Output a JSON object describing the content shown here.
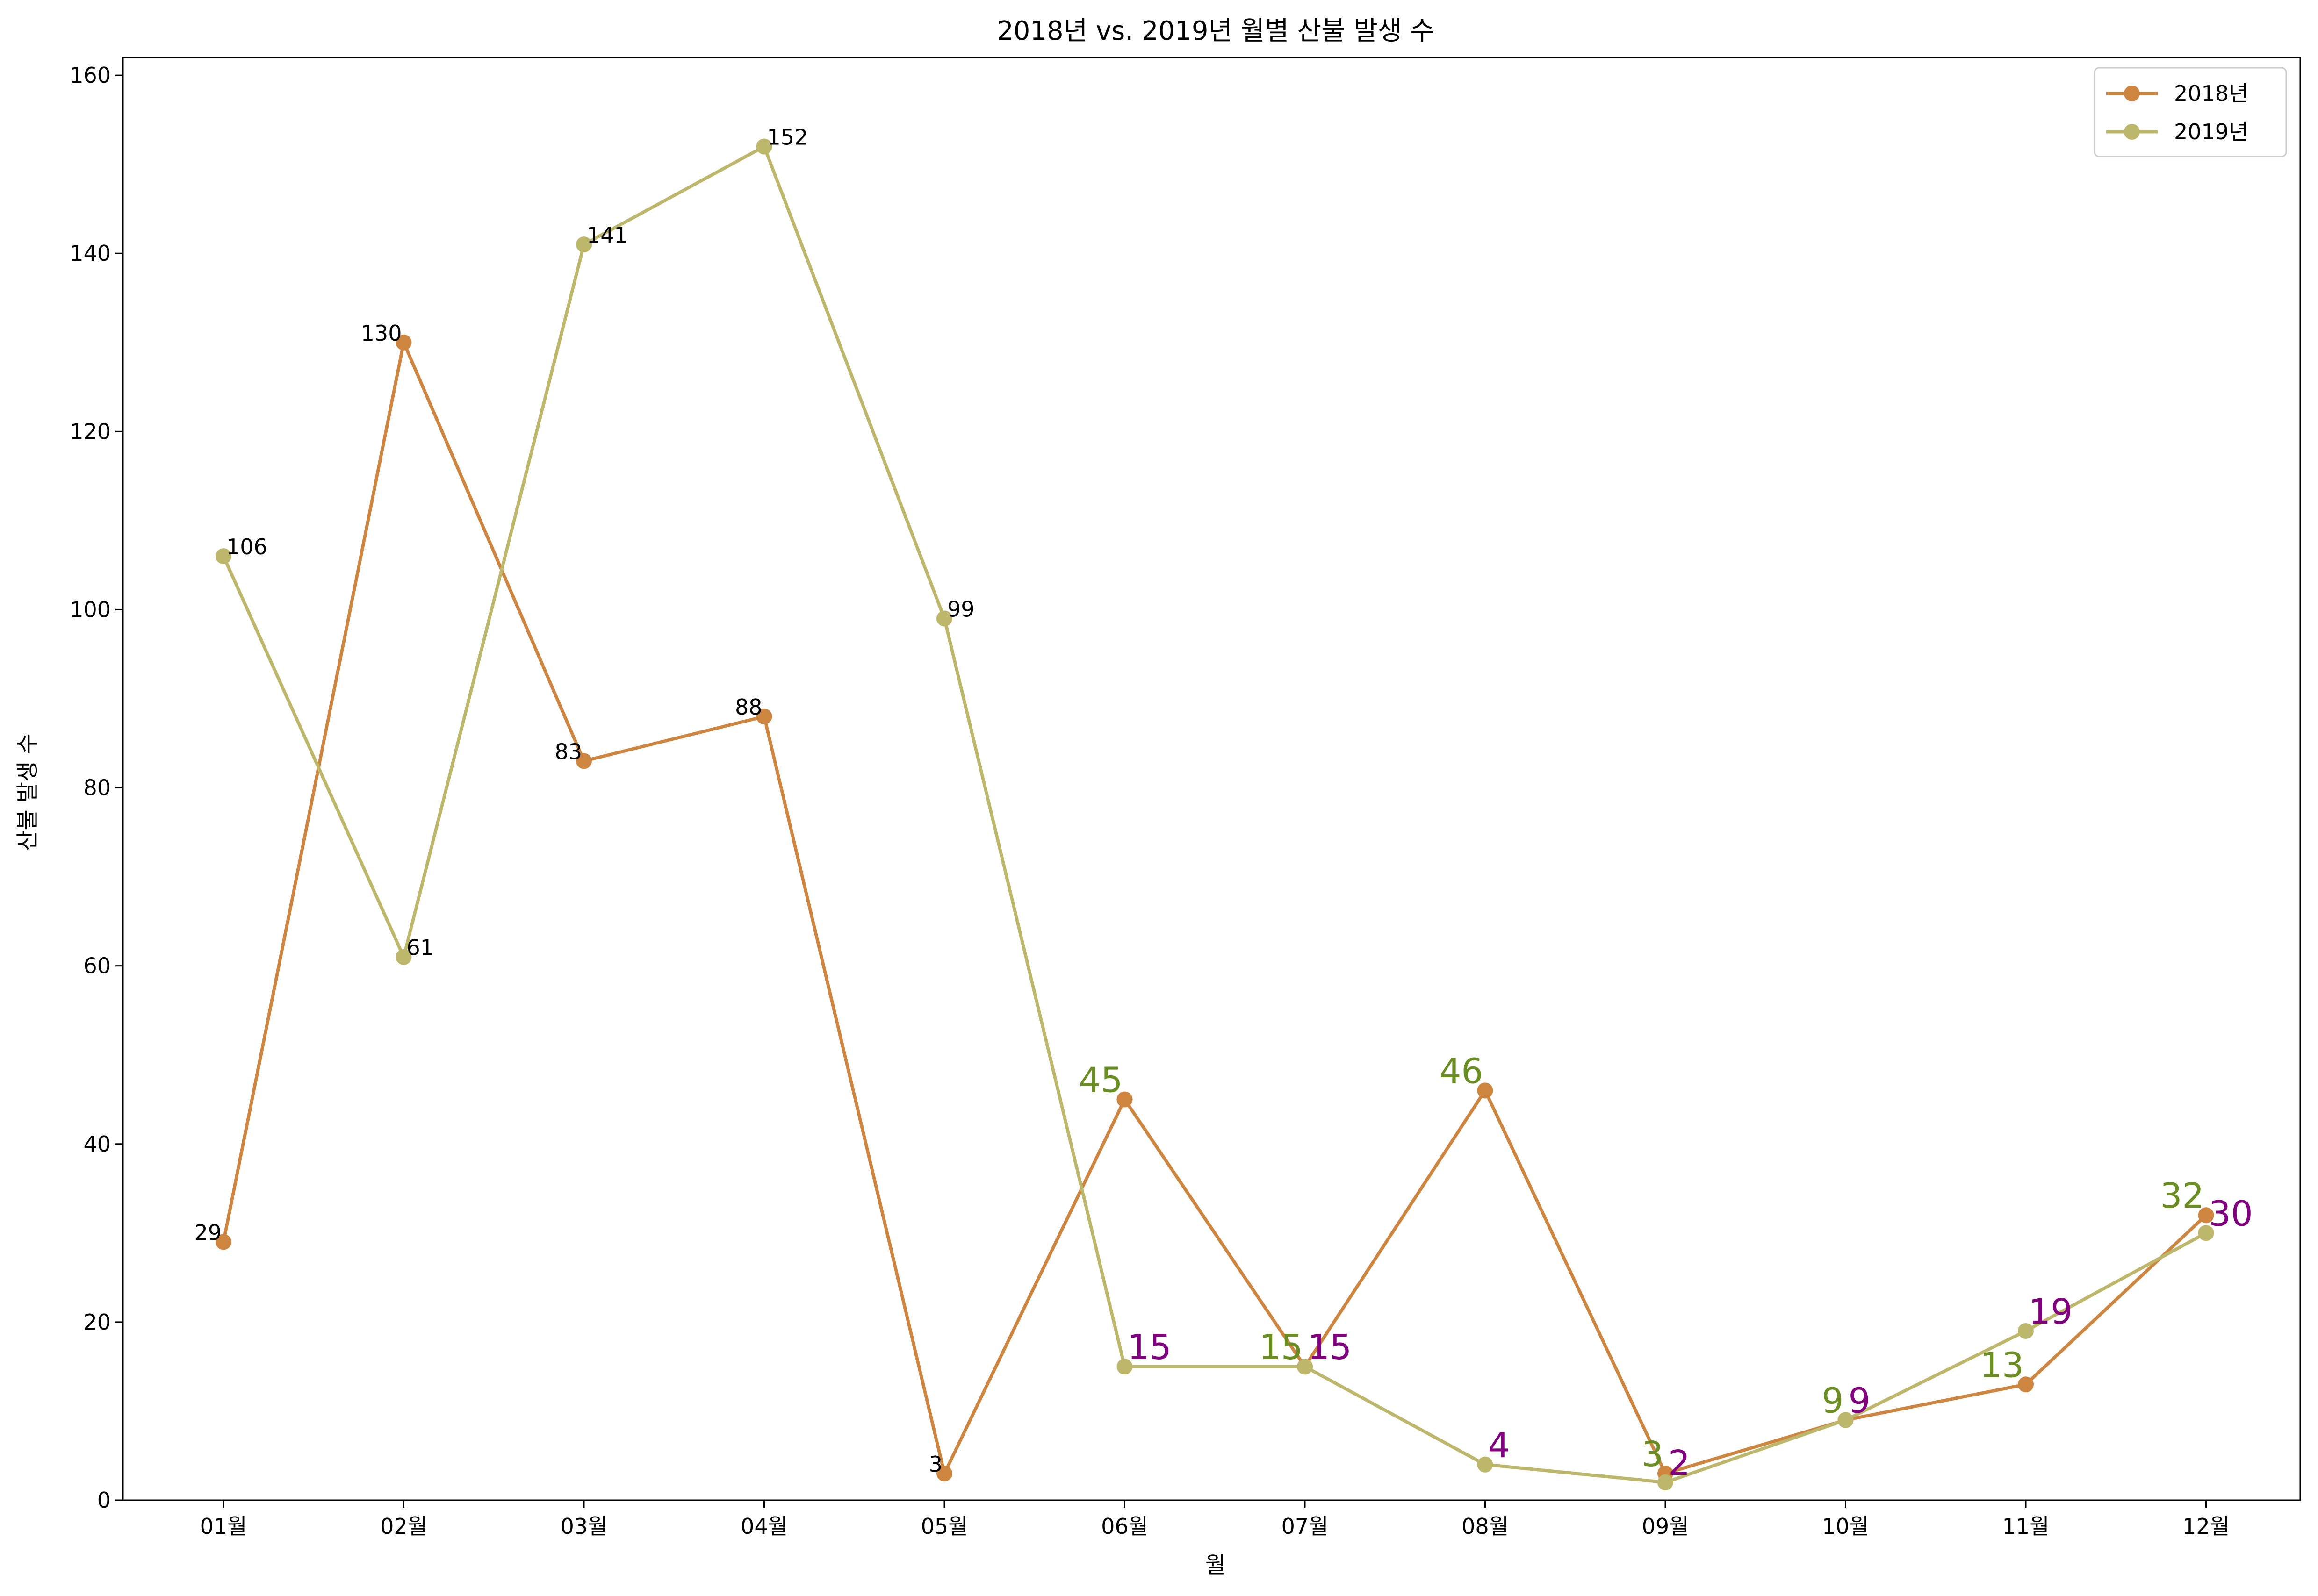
{
  "chart_data": {
    "type": "line",
    "title": "2018년 vs. 2019년 월별 산불 발생 수",
    "xlabel": "월",
    "ylabel": "산불 발생 수",
    "categories": [
      "01월",
      "02월",
      "03월",
      "04월",
      "05월",
      "06월",
      "07월",
      "08월",
      "09월",
      "10월",
      "11월",
      "12월"
    ],
    "yticks": [
      "0",
      "20",
      "40",
      "60",
      "80",
      "100",
      "120",
      "140",
      "160"
    ],
    "ylim": [
      0,
      162
    ],
    "grid": false,
    "legend_position": "top-right",
    "series": [
      {
        "name": "2018년",
        "color": "#cd853f",
        "values": [
          29,
          130,
          83,
          88,
          3,
          45,
          15,
          46,
          3,
          9,
          13,
          32
        ],
        "labels": [
          "29",
          "130",
          "83",
          "88",
          "3",
          "45",
          "15",
          "46",
          "3",
          "9",
          "13",
          "32"
        ]
      },
      {
        "name": "2019년",
        "color": "#bdb76b",
        "values": [
          106,
          61,
          141,
          152,
          99,
          15,
          15,
          4,
          2,
          9,
          19,
          30
        ],
        "labels": [
          "106",
          "61",
          "141",
          "152",
          "99",
          "15",
          "15",
          "4",
          "2",
          "9",
          "19",
          "30"
        ]
      }
    ],
    "annotation_colors": {
      "normal": "#000000",
      "highlight_2018": "#6b8e23",
      "highlight_2019": "#800080"
    }
  }
}
